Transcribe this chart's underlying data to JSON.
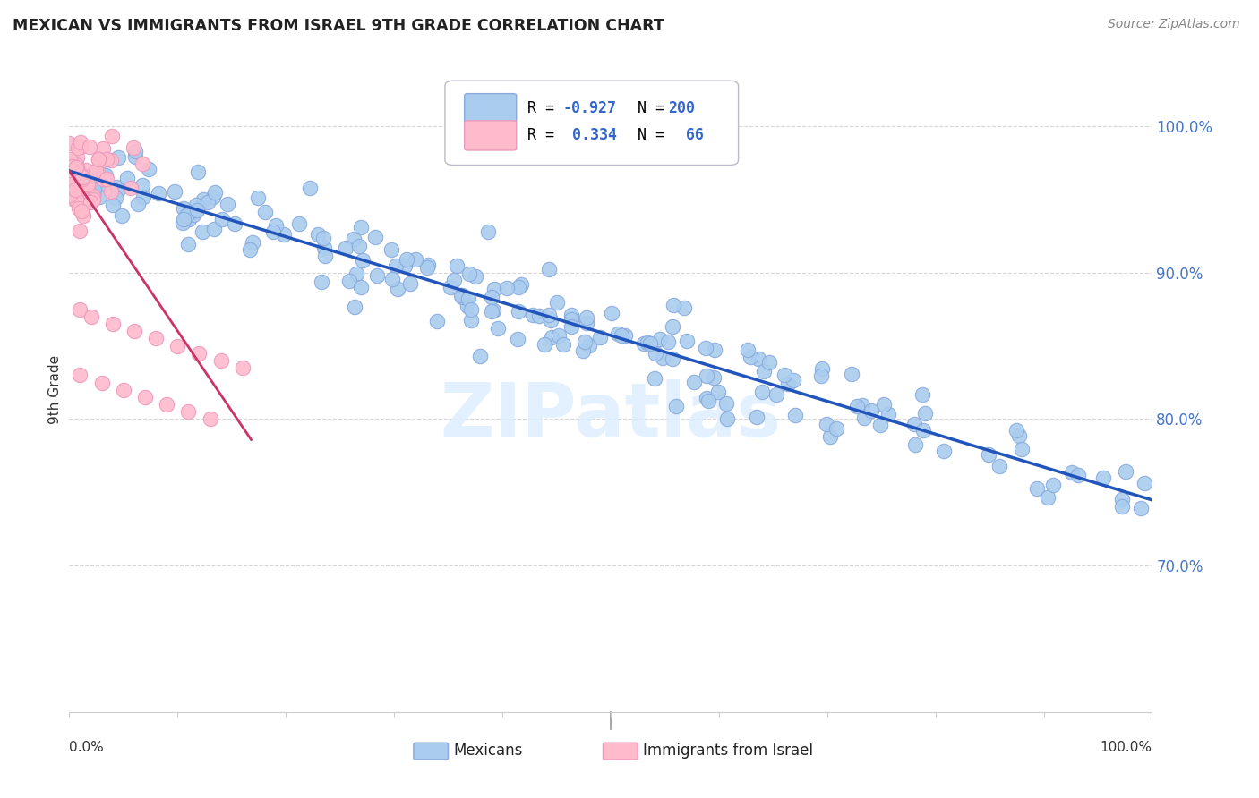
{
  "title": "MEXICAN VS IMMIGRANTS FROM ISRAEL 9TH GRADE CORRELATION CHART",
  "source": "Source: ZipAtlas.com",
  "ylabel": "9th Grade",
  "watermark_text": "ZIPatlas",
  "legend_r_label": "R =",
  "legend_n_label": "N =",
  "legend_blue_r": "-0.927",
  "legend_blue_n": "200",
  "legend_pink_r": "0.334",
  "legend_pink_n": "66",
  "blue_face": "#aaccee",
  "blue_edge": "#88aadd",
  "pink_face": "#ffbbcc",
  "pink_edge": "#ee99bb",
  "trend_blue": "#2255bb",
  "trend_pink": "#cc3366",
  "grid_color": "#cccccc",
  "right_label_color": "#4477cc",
  "legend_value_color": "#3366cc",
  "title_color": "#222222",
  "source_color": "#888888",
  "watermark_color": "#ddeeff",
  "xlim": [
    0.0,
    1.0
  ],
  "ylim": [
    0.6,
    1.04
  ],
  "seed": 7
}
